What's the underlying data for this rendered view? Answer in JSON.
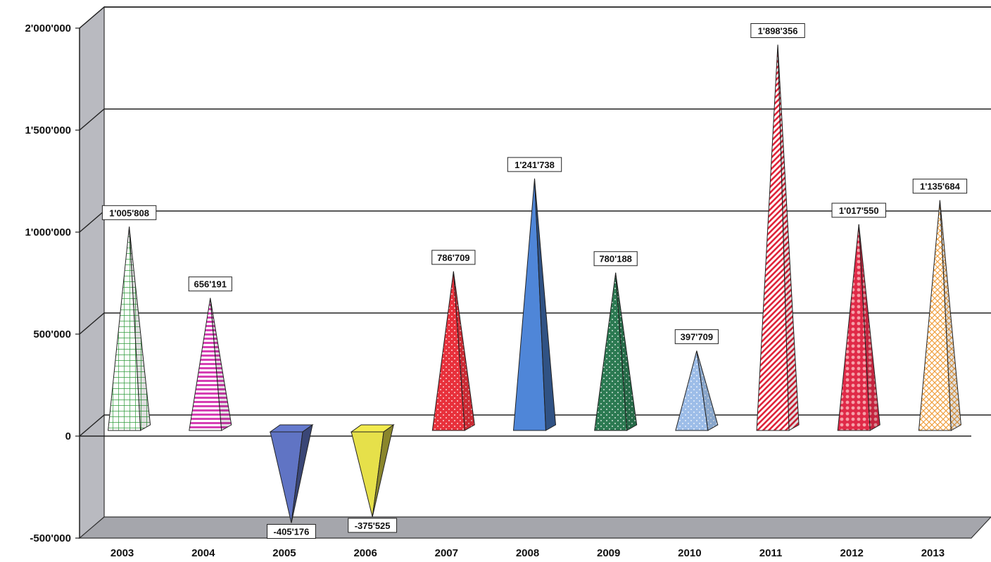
{
  "chart_data": {
    "type": "bar",
    "style": "3d-pyramid",
    "title": "",
    "xlabel": "",
    "ylabel": "",
    "categories": [
      "2003",
      "2004",
      "2005",
      "2006",
      "2007",
      "2008",
      "2009",
      "2010",
      "2011",
      "2012",
      "2013"
    ],
    "values": [
      1005808,
      656191,
      -405176,
      -375525,
      786709,
      1241738,
      780188,
      397709,
      1898356,
      1017550,
      1135684
    ],
    "data_labels": [
      "1'005'808",
      "656'191",
      "-405'176",
      "-375'525",
      "786'709",
      "1'241'738",
      "780'188",
      "397'709",
      "1'898'356",
      "1'017'550",
      "1'135'684"
    ],
    "ylim": [
      -500000,
      2000000
    ],
    "yticks": [
      -500000,
      0,
      500000,
      1000000,
      1500000,
      2000000
    ],
    "ytick_labels": [
      "-500'000",
      "0",
      "500'000",
      "1'000'000",
      "1'500'000",
      "2'000'000"
    ],
    "grid": true,
    "legend": "none",
    "pattern_colors": [
      "#2e9a3a",
      "#d63fb4",
      "#6074c4",
      "#e6e04a",
      "#e8313c",
      "#4f86d8",
      "#2c7a52",
      "#9dbde8",
      "#e0243a",
      "#e02a48",
      "#f0a040"
    ],
    "pattern_types": [
      "grid",
      "hstripe",
      "solid",
      "solid",
      "dots",
      "solid",
      "dots",
      "dots",
      "diag",
      "circles",
      "crosshatch"
    ]
  }
}
